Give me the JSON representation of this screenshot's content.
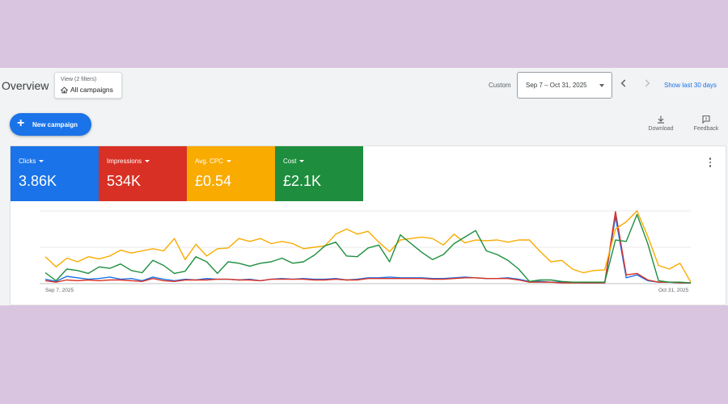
{
  "header": {
    "title": "Overview",
    "view_filter": {
      "sub": "View (2 filters)",
      "label": "All campaigns"
    },
    "custom_label": "Custom",
    "date_range": "Sep 7 – Oct 31, 2025",
    "show_last": "Show last 30 days"
  },
  "toolbar": {
    "new_campaign": "New campaign",
    "download": "Download",
    "feedback": "Feedback"
  },
  "metrics": [
    {
      "label": "Clicks",
      "value": "3.86K",
      "color": "#1a73e8"
    },
    {
      "label": "Impressions",
      "value": "534K",
      "color": "#d93025"
    },
    {
      "label": "Avg. CPC",
      "value": "£0.54",
      "color": "#f9ab00"
    },
    {
      "label": "Cost",
      "value": "£2.1K",
      "color": "#1e8e3e"
    }
  ],
  "chart_data": {
    "type": "line",
    "x_start_label": "Sep 7, 2025",
    "x_end_label": "Oct 31, 2025",
    "grid": true,
    "ylim": [
      0,
      100
    ],
    "series": [
      {
        "name": "Clicks",
        "color": "#1a73e8",
        "values": [
          6,
          3,
          10,
          8,
          6,
          7,
          9,
          6,
          7,
          4,
          9,
          6,
          4,
          6,
          5,
          7,
          6,
          6,
          5,
          6,
          4,
          6,
          7,
          6,
          7,
          6,
          6,
          7,
          5,
          6,
          8,
          8,
          9,
          8,
          8,
          8,
          7,
          7,
          8,
          9,
          8,
          7,
          7,
          8,
          6,
          3,
          3,
          2,
          2,
          2,
          1,
          1,
          1,
          92,
          8,
          12,
          4,
          2,
          2,
          1,
          1
        ]
      },
      {
        "name": "Impressions",
        "color": "#d93025",
        "values": [
          4,
          2,
          5,
          4,
          5,
          4,
          5,
          5,
          4,
          3,
          7,
          4,
          3,
          5,
          5,
          5,
          6,
          6,
          5,
          5,
          4,
          6,
          6,
          6,
          6,
          5,
          5,
          6,
          5,
          5,
          7,
          7,
          7,
          7,
          7,
          7,
          6,
          6,
          7,
          8,
          8,
          7,
          7,
          7,
          5,
          2,
          2,
          2,
          1,
          1,
          1,
          1,
          1,
          99,
          12,
          14,
          5,
          2,
          2,
          1,
          1
        ]
      },
      {
        "name": "Avg. CPC",
        "color": "#f9ab00",
        "values": [
          37,
          23,
          35,
          30,
          37,
          34,
          38,
          46,
          42,
          45,
          48,
          45,
          62,
          33,
          54,
          38,
          48,
          49,
          62,
          58,
          62,
          55,
          58,
          55,
          48,
          50,
          52,
          68,
          75,
          68,
          72,
          57,
          44,
          60,
          62,
          64,
          62,
          53,
          68,
          56,
          60,
          59,
          60,
          57,
          60,
          60,
          44,
          30,
          32,
          20,
          15,
          18,
          19,
          75,
          85,
          100,
          65,
          25,
          20,
          28,
          2
        ]
      },
      {
        "name": "Cost",
        "color": "#1e8e3e",
        "values": [
          15,
          4,
          20,
          18,
          14,
          23,
          21,
          27,
          18,
          15,
          32,
          25,
          14,
          17,
          37,
          30,
          14,
          30,
          28,
          24,
          28,
          30,
          35,
          28,
          30,
          39,
          52,
          57,
          38,
          37,
          49,
          53,
          30,
          67,
          55,
          43,
          33,
          40,
          55,
          64,
          73,
          45,
          40,
          32,
          20,
          3,
          5,
          5,
          3,
          2,
          2,
          2,
          2,
          60,
          58,
          95,
          55,
          4,
          2,
          2,
          1
        ]
      }
    ]
  }
}
